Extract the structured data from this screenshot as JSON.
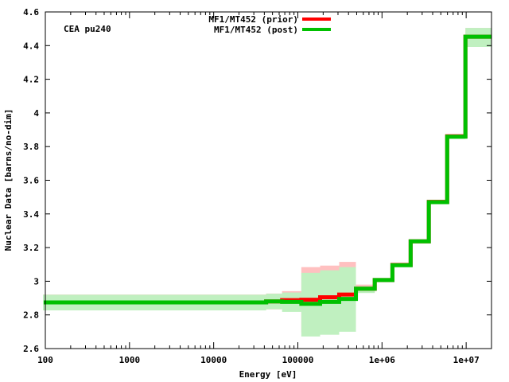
{
  "chart_data": {
    "type": "line",
    "subtype": "step",
    "annotation": "CEA pu240",
    "xlabel": "Energy [eV]",
    "ylabel": "Nuclear Data [barns/no-dim]",
    "xscale": "log",
    "xlim": [
      100,
      20000000
    ],
    "ylim": [
      2.6,
      4.6
    ],
    "yticks": [
      2.6,
      2.8,
      3.0,
      3.2,
      3.4,
      3.6,
      3.8,
      4.0,
      4.2,
      4.4,
      4.6
    ],
    "ytick_labels": [
      "2.6",
      "2.8",
      "3",
      "3.2",
      "3.4",
      "3.6",
      "3.8",
      "4",
      "4.2",
      "4.4",
      "4.6"
    ],
    "xticks": [
      100,
      1000,
      10000,
      100000,
      1000000,
      10000000
    ],
    "xtick_labels": [
      "100",
      "1000",
      "10000",
      "100000",
      "1e+06",
      "1e+07"
    ],
    "grid": false,
    "legend_position": "top-center",
    "series": [
      {
        "name": "MF1/MT452 (prior)",
        "color": "#ff0000",
        "band_color": "#ffc0c0"
      },
      {
        "name": "MF1/MT452 (post)",
        "color": "#00c000",
        "band_color": "#c0f0c0"
      }
    ],
    "bins": [
      {
        "e_lo": 100,
        "e_hi": 42000,
        "prior": 2.874,
        "prior_lo": 2.827,
        "prior_hi": 2.921,
        "post": 2.874,
        "post_lo": 2.827,
        "post_hi": 2.92
      },
      {
        "e_lo": 42000,
        "e_hi": 65000,
        "prior": 2.88,
        "prior_lo": 2.833,
        "prior_hi": 2.927,
        "post": 2.88,
        "post_lo": 2.834,
        "post_hi": 2.926
      },
      {
        "e_lo": 65000,
        "e_hi": 110000,
        "prior": 2.888,
        "prior_lo": 2.835,
        "prior_hi": 2.941,
        "post": 2.877,
        "post_lo": 2.818,
        "post_hi": 2.933
      },
      {
        "e_lo": 110000,
        "e_hi": 184000,
        "prior": 2.89,
        "prior_lo": 2.696,
        "prior_hi": 3.084,
        "post": 2.866,
        "post_lo": 2.672,
        "post_hi": 3.05
      },
      {
        "e_lo": 184000,
        "e_hi": 310000,
        "prior": 2.905,
        "prior_lo": 2.717,
        "prior_hi": 3.093,
        "post": 2.877,
        "post_lo": 2.682,
        "post_hi": 3.065
      },
      {
        "e_lo": 310000,
        "e_hi": 490000,
        "prior": 2.921,
        "prior_lo": 2.727,
        "prior_hi": 3.115,
        "post": 2.895,
        "post_lo": 2.7,
        "post_hi": 3.084
      },
      {
        "e_lo": 490000,
        "e_hi": 820000,
        "prior": 2.956,
        "prior_lo": 2.932,
        "prior_hi": 2.98,
        "post": 2.956,
        "post_lo": 2.93,
        "post_hi": 2.97
      },
      {
        "e_lo": 820000,
        "e_hi": 1330000,
        "prior": 3.007,
        "prior_lo": 2.997,
        "prior_hi": 3.017,
        "post": 3.007,
        "post_lo": 2.997,
        "post_hi": 3.015
      },
      {
        "e_lo": 1330000,
        "e_hi": 2190000,
        "prior": 3.097,
        "prior_lo": 3.087,
        "prior_hi": 3.107,
        "post": 3.095,
        "post_lo": 3.085,
        "post_hi": 3.103
      },
      {
        "e_lo": 2190000,
        "e_hi": 3600000,
        "prior": 3.237,
        "prior_lo": 3.227,
        "prior_hi": 3.247,
        "post": 3.237,
        "post_lo": 3.227,
        "post_hi": 3.245
      },
      {
        "e_lo": 3600000,
        "e_hi": 5950000,
        "prior": 3.472,
        "prior_lo": 3.46,
        "prior_hi": 3.484,
        "post": 3.47,
        "post_lo": 3.458,
        "post_hi": 3.482
      },
      {
        "e_lo": 5950000,
        "e_hi": 9800000,
        "prior": 3.861,
        "prior_lo": 3.849,
        "prior_hi": 3.873,
        "post": 3.859,
        "post_lo": 3.845,
        "post_hi": 3.869
      },
      {
        "e_lo": 9800000,
        "e_hi": 20000000,
        "prior": 4.453,
        "prior_lo": 4.392,
        "prior_hi": 4.505,
        "post": 4.453,
        "post_lo": 4.392,
        "post_hi": 4.505
      }
    ]
  }
}
